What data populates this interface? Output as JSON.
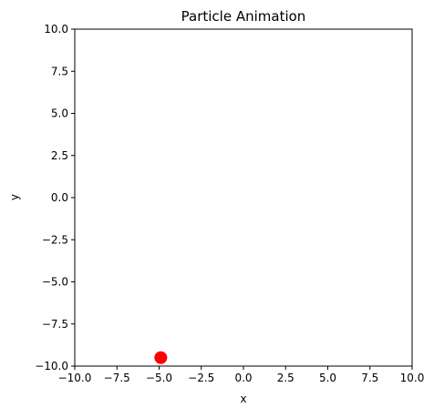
{
  "chart_data": {
    "type": "scatter",
    "title": "Particle Animation",
    "xlabel": "x",
    "ylabel": "y",
    "xlim": [
      -10,
      10
    ],
    "ylim": [
      -10,
      10
    ],
    "x_ticks": [
      -10,
      -7.5,
      -5,
      -2.5,
      0,
      2.5,
      5,
      7.5,
      10
    ],
    "x_tick_labels": [
      "−10.0",
      "−7.5",
      "−5.0",
      "−2.5",
      "0.0",
      "2.5",
      "5.0",
      "7.5",
      "10.0"
    ],
    "y_ticks": [
      10,
      7.5,
      5,
      2.5,
      0,
      -2.5,
      -5,
      -7.5,
      -10
    ],
    "y_tick_labels": [
      "10.0",
      "7.5",
      "5.0",
      "2.5",
      "0.0",
      "−2.5",
      "−5.0",
      "−7.5",
      "−10.0"
    ],
    "grid": false,
    "series": [
      {
        "points": [
          {
            "x": -4.9,
            "y": -9.5
          }
        ],
        "color": "#ff0000"
      }
    ]
  }
}
